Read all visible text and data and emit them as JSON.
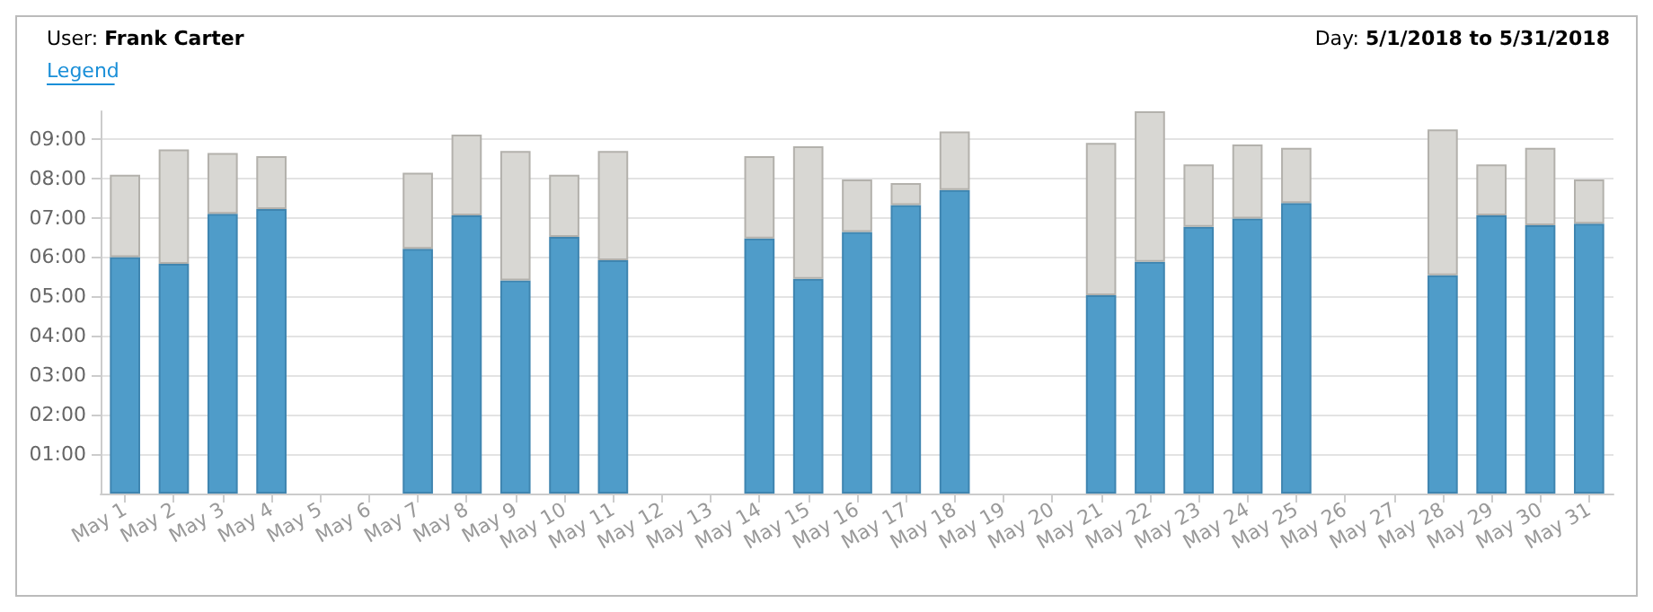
{
  "chart_data": {
    "type": "bar",
    "title": "User: Frank Carter",
    "annotations": [
      "Day: 5/1/2018 to 5/31/2018",
      "Legend"
    ],
    "categories": [
      "May 1",
      "May 2",
      "May 3",
      "May 4",
      "May 5",
      "May 6",
      "May 7",
      "May 8",
      "May 9",
      "May 10",
      "May 11",
      "May 12",
      "May 13",
      "May 14",
      "May 15",
      "May 16",
      "May 17",
      "May 18",
      "May 19",
      "May 20",
      "May 21",
      "May 22",
      "May 23",
      "May 24",
      "May 25",
      "May 26",
      "May 27",
      "May 28",
      "May 29",
      "May 30",
      "May 31"
    ],
    "stacked": true,
    "series": [
      {
        "color": "#4f9cc9",
        "values": [
          6.0,
          5.83,
          7.1,
          7.22,
          null,
          null,
          6.21,
          7.06,
          5.41,
          6.51,
          5.92,
          null,
          null,
          6.47,
          5.45,
          6.64,
          7.32,
          7.7,
          null,
          null,
          5.03,
          5.88,
          6.77,
          6.98,
          7.37,
          null,
          null,
          5.54,
          7.06,
          6.81,
          6.85
        ]
      },
      {
        "color": "#d8d7d3",
        "values": [
          2.09,
          2.9,
          1.54,
          1.34,
          null,
          null,
          1.93,
          2.05,
          3.28,
          1.58,
          2.77,
          null,
          null,
          2.09,
          3.36,
          1.33,
          0.56,
          1.49,
          null,
          null,
          3.87,
          3.82,
          1.58,
          1.88,
          1.4,
          null,
          null,
          3.7,
          1.29,
          1.96,
          1.12
        ]
      }
    ],
    "ylim": [
      0,
      9.7
    ],
    "yticks": [
      {
        "value": 1,
        "label": "01:00"
      },
      {
        "value": 2,
        "label": "02:00"
      },
      {
        "value": 3,
        "label": "03:00"
      },
      {
        "value": 4,
        "label": "04:00"
      },
      {
        "value": 5,
        "label": "05:00"
      },
      {
        "value": 6,
        "label": "06:00"
      },
      {
        "value": 7,
        "label": "07:00"
      },
      {
        "value": 8,
        "label": "08:00"
      },
      {
        "value": 9,
        "label": "09:00"
      }
    ],
    "grid": "y"
  }
}
